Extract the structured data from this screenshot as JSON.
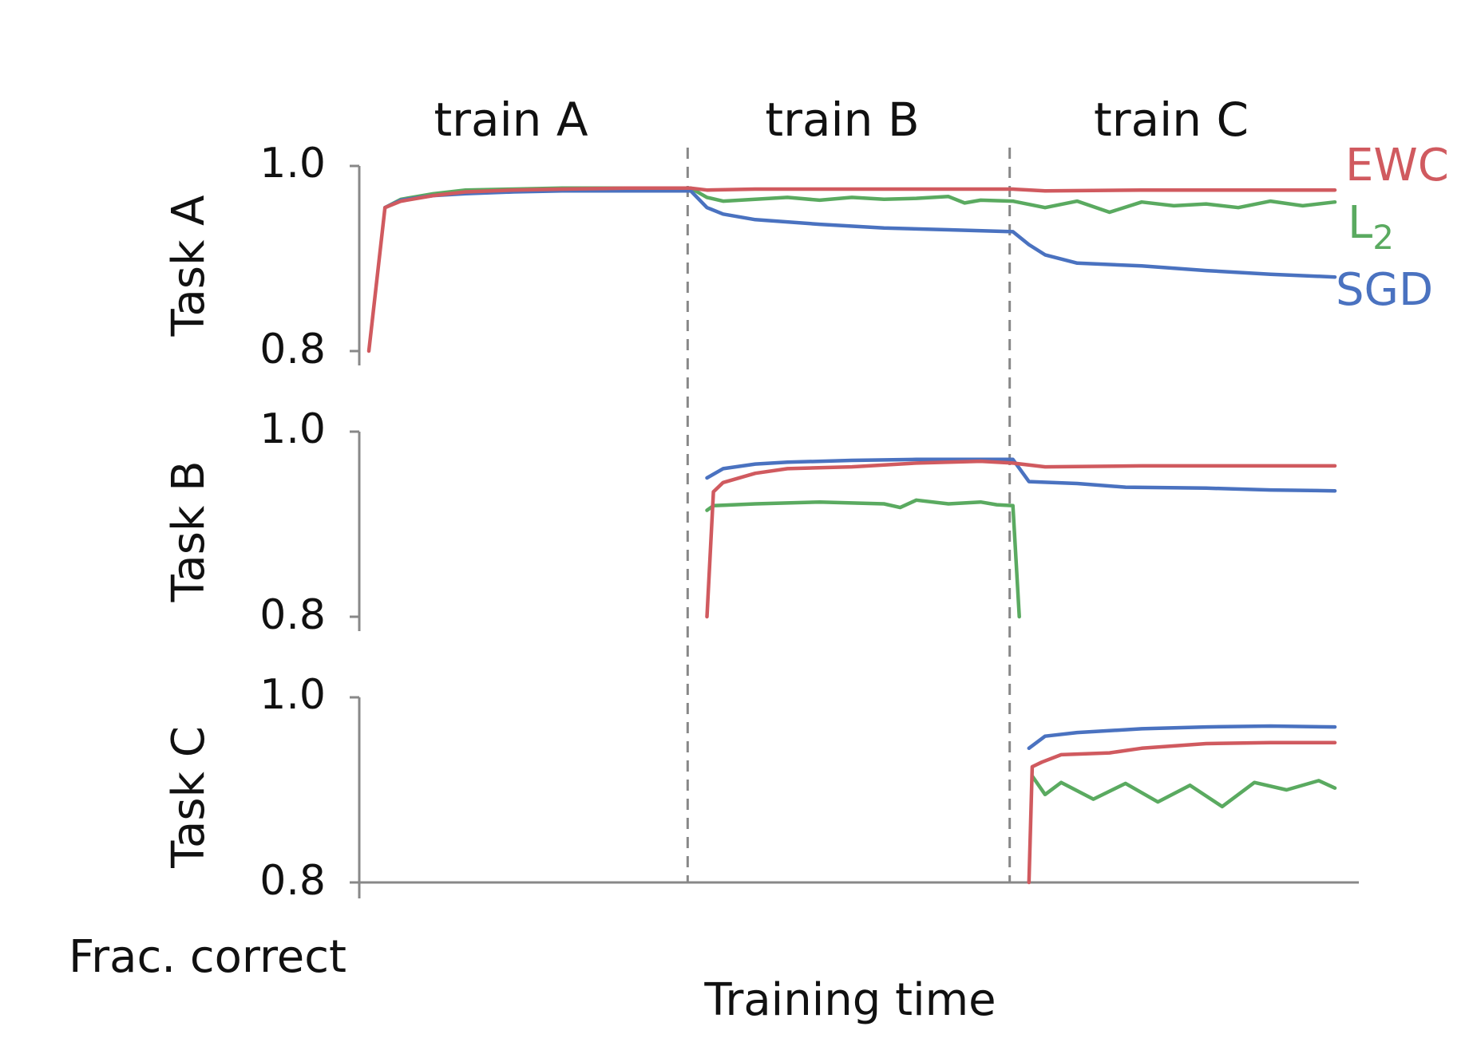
{
  "chart_data": {
    "type": "line",
    "xlabel": "Training time",
    "ylabel": "Frac. correct",
    "phases": [
      "train A",
      "train B",
      "train C"
    ],
    "ylim": [
      0.8,
      1.0
    ],
    "y_ticks": [
      "1.0",
      "0.8"
    ],
    "grid": false,
    "legend_position": "right of top panel",
    "colors": {
      "EWC": "#d05a5f",
      "L2": "#5aaa60",
      "SGD": "#4a72c0",
      "axis": "#888888",
      "divider": "#888888"
    },
    "legend": [
      {
        "key": "EWC",
        "label": "EWC",
        "sub": ""
      },
      {
        "key": "L2",
        "label": "L",
        "sub": "2"
      },
      {
        "key": "SGD",
        "label": "SGD",
        "sub": ""
      }
    ],
    "panels": [
      {
        "label": "Task A",
        "series": [
          {
            "key": "EWC",
            "x": [
              0.0,
              0.05,
              0.1,
              0.2,
              0.3,
              0.45,
              0.6,
              0.8,
              1.0,
              1.05,
              1.2,
              1.5,
              1.8,
              2.0,
              2.1,
              2.4,
              2.7,
              3.0
            ],
            "y": [
              0.8,
              0.955,
              0.962,
              0.968,
              0.972,
              0.974,
              0.975,
              0.976,
              0.976,
              0.974,
              0.975,
              0.975,
              0.975,
              0.975,
              0.973,
              0.974,
              0.974,
              0.974
            ]
          },
          {
            "key": "L2",
            "x": [
              0.05,
              0.1,
              0.2,
              0.3,
              0.45,
              0.6,
              0.8,
              1.0,
              1.05,
              1.1,
              1.2,
              1.3,
              1.4,
              1.5,
              1.6,
              1.7,
              1.8,
              1.85,
              1.9,
              2.0,
              2.1,
              2.2,
              2.3,
              2.4,
              2.5,
              2.6,
              2.7,
              2.8,
              2.9,
              3.0
            ],
            "y": [
              0.955,
              0.964,
              0.97,
              0.974,
              0.975,
              0.976,
              0.976,
              0.976,
              0.966,
              0.962,
              0.964,
              0.966,
              0.963,
              0.966,
              0.964,
              0.965,
              0.967,
              0.96,
              0.963,
              0.962,
              0.955,
              0.962,
              0.95,
              0.961,
              0.957,
              0.959,
              0.955,
              0.962,
              0.957,
              0.961
            ]
          },
          {
            "key": "SGD",
            "x": [
              0.05,
              0.1,
              0.2,
              0.3,
              0.45,
              0.6,
              0.8,
              1.0,
              1.05,
              1.1,
              1.2,
              1.4,
              1.6,
              1.8,
              2.0,
              2.05,
              2.1,
              2.2,
              2.4,
              2.6,
              2.8,
              3.0
            ],
            "y": [
              0.955,
              0.963,
              0.968,
              0.97,
              0.972,
              0.973,
              0.973,
              0.973,
              0.955,
              0.948,
              0.942,
              0.937,
              0.933,
              0.931,
              0.929,
              0.915,
              0.904,
              0.895,
              0.892,
              0.887,
              0.883,
              0.88
            ]
          }
        ]
      },
      {
        "label": "Task B",
        "series": [
          {
            "key": "EWC",
            "x": [
              1.05,
              1.07,
              1.1,
              1.2,
              1.3,
              1.5,
              1.7,
              1.9,
              2.0,
              2.1,
              2.4,
              2.7,
              3.0
            ],
            "y": [
              0.8,
              0.935,
              0.945,
              0.955,
              0.96,
              0.962,
              0.966,
              0.968,
              0.966,
              0.962,
              0.963,
              0.963,
              0.963
            ]
          },
          {
            "key": "L2",
            "x": [
              1.05,
              1.07,
              1.2,
              1.4,
              1.6,
              1.65,
              1.7,
              1.8,
              1.9,
              1.95,
              2.0,
              2.02
            ],
            "y": [
              0.915,
              0.92,
              0.922,
              0.924,
              0.922,
              0.918,
              0.926,
              0.922,
              0.924,
              0.921,
              0.92,
              0.8
            ]
          },
          {
            "key": "SGD",
            "x": [
              1.05,
              1.1,
              1.2,
              1.3,
              1.5,
              1.7,
              1.9,
              2.0,
              2.05,
              2.2,
              2.35,
              2.6,
              2.8,
              3.0
            ],
            "y": [
              0.95,
              0.96,
              0.965,
              0.967,
              0.969,
              0.97,
              0.97,
              0.97,
              0.946,
              0.944,
              0.94,
              0.939,
              0.937,
              0.936
            ]
          }
        ]
      },
      {
        "label": "Task C",
        "series": [
          {
            "key": "EWC",
            "x": [
              2.05,
              2.06,
              2.09,
              2.15,
              2.3,
              2.4,
              2.6,
              2.8,
              3.0
            ],
            "y": [
              0.8,
              0.925,
              0.93,
              0.938,
              0.94,
              0.945,
              0.95,
              0.951,
              0.951
            ]
          },
          {
            "key": "L2",
            "x": [
              2.06,
              2.1,
              2.15,
              2.25,
              2.35,
              2.45,
              2.55,
              2.65,
              2.75,
              2.85,
              2.95,
              3.0
            ],
            "y": [
              0.915,
              0.895,
              0.908,
              0.89,
              0.907,
              0.887,
              0.905,
              0.882,
              0.908,
              0.9,
              0.91,
              0.902
            ]
          },
          {
            "key": "SGD",
            "x": [
              2.05,
              2.1,
              2.2,
              2.4,
              2.6,
              2.8,
              3.0
            ],
            "y": [
              0.945,
              0.958,
              0.962,
              0.966,
              0.968,
              0.969,
              0.968
            ]
          }
        ]
      }
    ]
  }
}
